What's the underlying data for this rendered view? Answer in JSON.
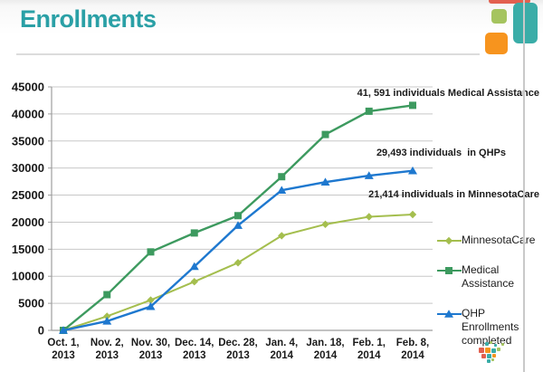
{
  "slide": {
    "title": "Enrollments",
    "colors": {
      "title_teal": "#2aa0a6",
      "accent_red": "#e2604f",
      "accent_teal": "#3aada8",
      "accent_green": "#a5c45f",
      "accent_orange": "#f7941e"
    }
  },
  "chart_data": {
    "type": "line",
    "title": "",
    "xlabel": "",
    "ylabel": "",
    "categories": [
      "Oct. 1, 2013",
      "Nov. 2, 2013",
      "Nov. 30, 2013",
      "Dec. 14, 2013",
      "Dec. 28, 2013",
      "Jan. 4, 2014",
      "Jan. 18, 2014",
      "Feb. 1, 2014",
      "Feb. 8, 2014"
    ],
    "series": [
      {
        "name": "MinnesotaCare",
        "color": "#a4be4e",
        "marker": "diamond",
        "values": [
          0,
          2600,
          5600,
          9000,
          12500,
          17500,
          19600,
          21000,
          21414
        ]
      },
      {
        "name": "Medical Assistance",
        "color": "#3d9a5f",
        "marker": "square",
        "values": [
          0,
          6600,
          14500,
          18000,
          21200,
          28400,
          36200,
          40500,
          41591
        ]
      },
      {
        "name": "QHP Enrollments completed",
        "color": "#1e78cf",
        "marker": "triangle",
        "values": [
          0,
          1700,
          4400,
          11800,
          19400,
          25900,
          27400,
          28600,
          29493
        ]
      }
    ],
    "ylim": [
      0,
      45000
    ],
    "ytick_step": 5000,
    "y_tick_labels": [
      "0",
      "5000",
      "10000",
      "15000",
      "20000",
      "25000",
      "30000",
      "35000",
      "40000",
      "45000"
    ],
    "grid": true,
    "legend_position": "right",
    "annotations": [
      {
        "text": "41, 591 individuals Medical Assistance",
        "series": "Medical Assistance"
      },
      {
        "text": "29,493 individuals  in QHPs",
        "series": "QHP Enrollments completed"
      },
      {
        "text": "21,414 individuals in MinnesotaCare",
        "series": "MinnesotaCare"
      }
    ]
  }
}
